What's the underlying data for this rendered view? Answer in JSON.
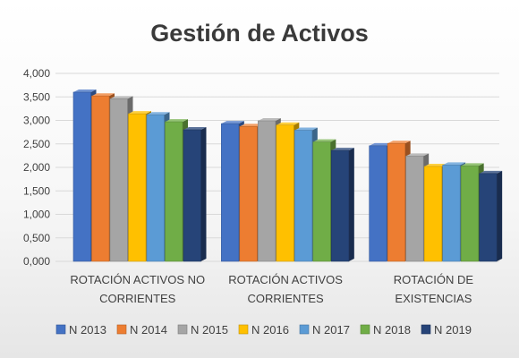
{
  "chart_data": {
    "type": "bar",
    "title": "Gestión de Activos",
    "xlabel": "",
    "ylabel": "",
    "ylim": [
      0,
      4000
    ],
    "ytick_step": 500,
    "ytick_labels": [
      "0,000",
      "0,500",
      "1,000",
      "1,500",
      "2,000",
      "2,500",
      "3,000",
      "3,500",
      "4,000"
    ],
    "grid": true,
    "legend_position": "bottom",
    "categories": [
      [
        "ROTACIÓN ACTIVOS NO",
        "CORRIENTES"
      ],
      [
        "ROTACIÓN ACTIVOS",
        "CORRIENTES"
      ],
      [
        "ROTACIÓN DE",
        "EXISTENCIAS"
      ]
    ],
    "series": [
      {
        "name": "N 2013",
        "color": "#4472c4",
        "values": [
          3600,
          2930,
          2460
        ]
      },
      {
        "name": "N 2014",
        "color": "#ed7d31",
        "values": [
          3520,
          2870,
          2510
        ]
      },
      {
        "name": "N 2015",
        "color": "#a5a5a5",
        "values": [
          3460,
          2990,
          2240
        ]
      },
      {
        "name": "N 2016",
        "color": "#ffc000",
        "values": [
          3140,
          2900,
          2020
        ]
      },
      {
        "name": "N 2017",
        "color": "#5b9bd5",
        "values": [
          3120,
          2790,
          2050
        ]
      },
      {
        "name": "N 2018",
        "color": "#70ad47",
        "values": [
          2970,
          2540,
          2030
        ]
      },
      {
        "name": "N 2019",
        "color": "#264478",
        "values": [
          2800,
          2360,
          1870
        ]
      }
    ]
  }
}
